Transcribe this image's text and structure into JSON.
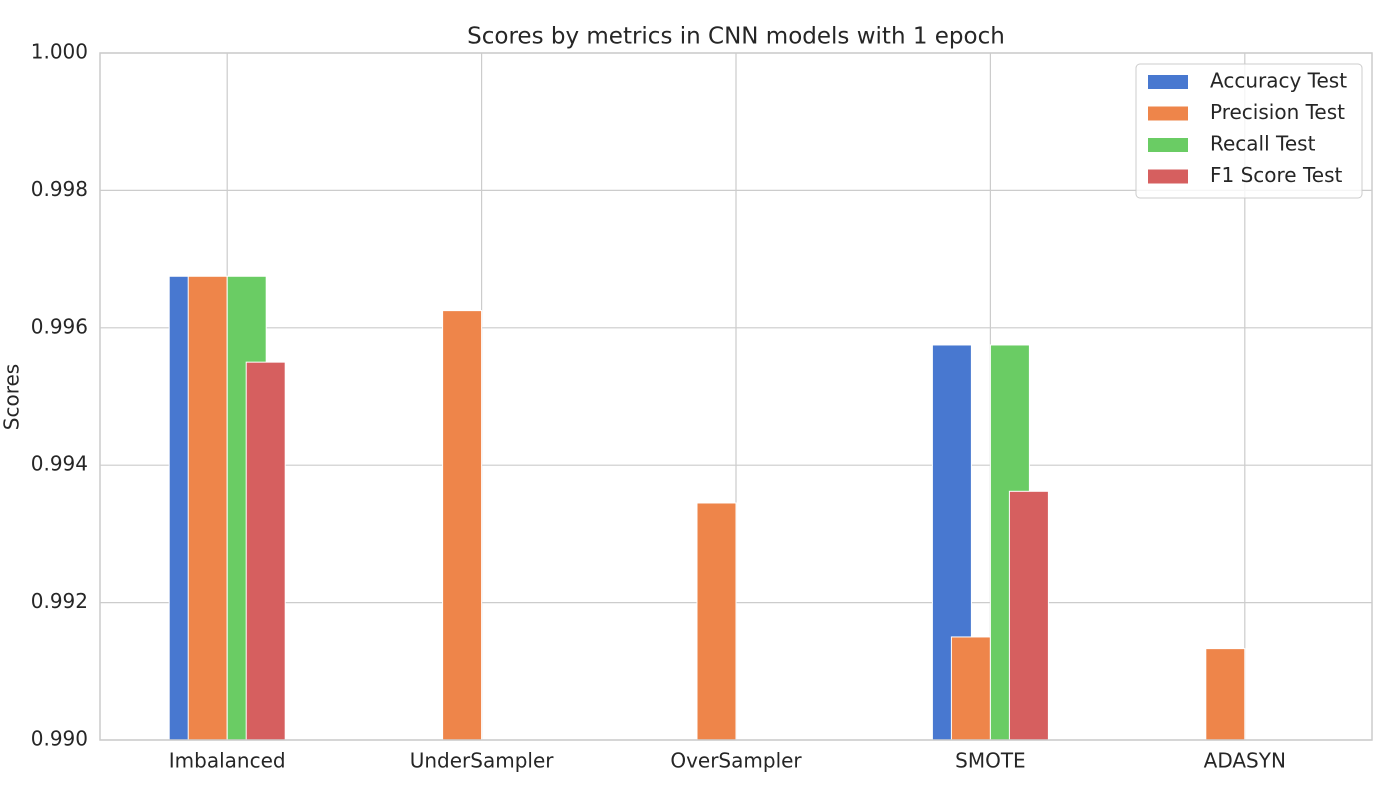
{
  "chart_data": {
    "type": "bar",
    "title": "Scores by metrics in CNN models with 1 epoch",
    "y_label": "Scores",
    "categories": [
      "Imbalanced",
      "UnderSampler",
      "OverSampler",
      "SMOTE",
      "ADASYN"
    ],
    "series": [
      {
        "name": "Accuracy Test",
        "color": "#4878d0",
        "values": [
          0.99675,
          null,
          null,
          0.99575,
          null
        ]
      },
      {
        "name": "Precision Test",
        "color": "#ee854a",
        "values": [
          0.99675,
          0.99625,
          0.99345,
          0.9915,
          0.99133
        ]
      },
      {
        "name": "Recall Test",
        "color": "#6acc64",
        "values": [
          0.99675,
          null,
          null,
          0.99575,
          null
        ]
      },
      {
        "name": "F1 Score Test",
        "color": "#d65f5f",
        "values": [
          0.9955,
          null,
          null,
          0.99362,
          null
        ]
      }
    ],
    "ylim": [
      0.99,
      1.0
    ],
    "yticks": [
      {
        "value": 0.99,
        "label": "0.990"
      },
      0.992,
      0.994,
      0.996,
      0.998,
      {
        "value": 1.0,
        "label": "1.000"
      }
    ],
    "grid": true,
    "legend": "upper right"
  }
}
